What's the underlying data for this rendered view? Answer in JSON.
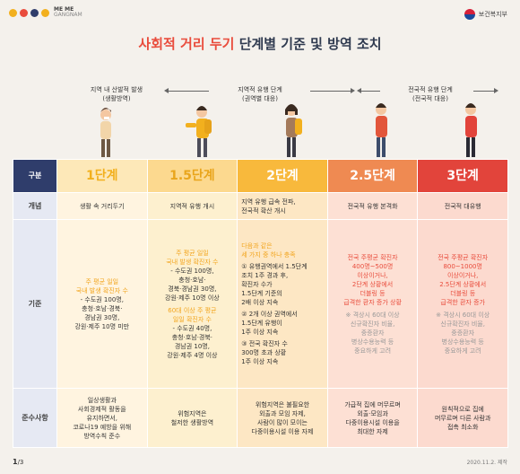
{
  "header": {
    "brand_top": "ME ME",
    "brand_bottom": "GANGNAM",
    "ministry": "보건복지부"
  },
  "title": {
    "prefix": "사회적 거리 두기",
    "suffix": "단계별 기준 및 방역 조치"
  },
  "phases": [
    {
      "line1": "지역 내 산발적 발생",
      "line2": "(생활방역)"
    },
    {
      "line1": "지역적 유행 단계",
      "line2": "(권역별 대응)"
    },
    {
      "line1": "전국적 유행 단계",
      "line2": "(전국적 대응)"
    }
  ],
  "table": {
    "col_header": "구분",
    "levels": [
      "1단계",
      "1.5단계",
      "2단계",
      "2.5단계",
      "3단계"
    ],
    "row_labels": {
      "overview": "개념",
      "criteria": "기준",
      "rules": "준수사항"
    },
    "overview": [
      "생활 속 거리두기",
      "지역적 유행 개시",
      "지역 유행 급속 전파,\n전국적 확산 개시",
      "전국적 유행 본격화",
      "전국적 대유행"
    ],
    "criteria": {
      "l1": {
        "highlight": "주 평균 일일\n국내 발생 확진자 수",
        "items": "- 수도권 100명,\n충청·호남·경북·\n경남권 30명,\n강원·제주 10명 미만"
      },
      "l15": {
        "hl1": "주 평균 일일\n국내 발생 확진자 수",
        "items1": "- 수도권 100명,\n충청·호남·\n경북·경남권 30명,\n강원·제주 10명 이상",
        "hl2": "60대 이상 주 평균\n일일 확진자 수",
        "items2": "- 수도권 40명,\n충청·호남·경북·\n경남권 10명,\n강원·제주 4명 이상"
      },
      "l2": {
        "highlight": "다음과 같은\n세 가지 중 하나 충족",
        "i1": "① 유행권역에서 1.5단계\n조치 1주 경과 후,\n확진자 수가\n1.5단계 기준의\n2배 이상 지속",
        "i2": "② 2개 이상 권역에서\n1.5단계 유행이\n1주 이상 지속",
        "i3": "③ 전국 확진자 수\n300명 초과 상황\n1주 이상 지속"
      },
      "l25": {
        "highlight": "전국 주평균 확진자\n400명~500명\n이상이거나,\n2단계 상황에서\n더블링 등\n급격한 환자 증가 상황",
        "note": "※ 격상시 60대 이상\n신규확진자 비율,\n중증환자\n병상수용능력 등\n중요하게 고려"
      },
      "l3": {
        "highlight": "전국 주평균 확진자\n800~1000명\n이상이거나,\n2.5단계 상황에서\n더블링 등\n급격한 환자 증가",
        "note": "※ 격상시 60대 이상\n신규확진자 비율,\n중증환자\n병상수용능력 등\n중요하게 고려"
      }
    },
    "rules": [
      "일상생활과\n사회경제적 활동을\n유지하면서,\n코로나19 예방을 위해\n방역수칙 준수",
      "위험지역은\n철저한 생활방역",
      "위험지역은 불필요한\n외출과 모임 자제,\n사람이 많이 모이는\n다중이용시설 이용 자제",
      "가급적 집에 머무르며\n외출·모임과\n다중이용시설 이용을\n최대한 자제",
      "원칙적으로 집에\n머무르며 다른 사람과\n접촉 최소화"
    ]
  },
  "footer": {
    "page": "1",
    "total": "/3",
    "date": "2020.11.2. 제작"
  }
}
